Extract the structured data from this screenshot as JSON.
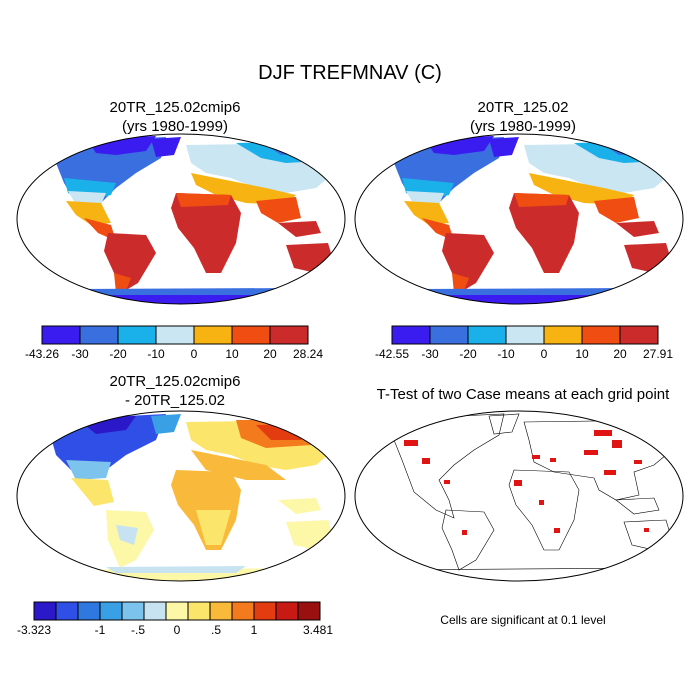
{
  "title": "DJF TREFMNAV (C)",
  "colors": {
    "c1": "#3b1cf0",
    "c2": "#3a6fe0",
    "c3": "#1ab0ea",
    "c4": "#c9e6f2",
    "w1": "#f6b312",
    "w2": "#f04d12",
    "w3": "#cc2b2b",
    "d1": "#2b18c8",
    "d2": "#2f4fe6",
    "d3": "#2f78e0",
    "d4": "#3aa0e6",
    "d5": "#7cc4ee",
    "d6": "#c7e3f2",
    "d7": "#fdf7a8",
    "d8": "#fce56b",
    "d9": "#f9b93a",
    "d10": "#f47b1d",
    "d11": "#e23c10",
    "d12": "#c71a14",
    "d13": "#9a0f10",
    "sig": "#e11414"
  },
  "panels": [
    {
      "line1": "20TR_125.02cmip6",
      "line2": "(yrs 1980-1999)",
      "colorbar": {
        "labels": [
          "-43.26",
          "-30",
          "-20",
          "-10",
          "0",
          "10",
          "20",
          "28.24"
        ]
      }
    },
    {
      "line1": "20TR_125.02",
      "line2": "(yrs 1980-1999)",
      "colorbar": {
        "labels": [
          "-42.55",
          "-30",
          "-20",
          "-10",
          "0",
          "10",
          "20",
          "27.91"
        ]
      }
    },
    {
      "line1": "20TR_125.02cmip6",
      "line2": "- 20TR_125.02",
      "colorbar": {
        "labels": [
          "-3.323",
          "-1",
          "-.5",
          "0",
          ".5",
          "1",
          "3.481"
        ]
      }
    },
    {
      "line1": "T-Test of two Case means at each grid point",
      "line2": "",
      "note": "Cells are significant at 0.1 level"
    }
  ]
}
